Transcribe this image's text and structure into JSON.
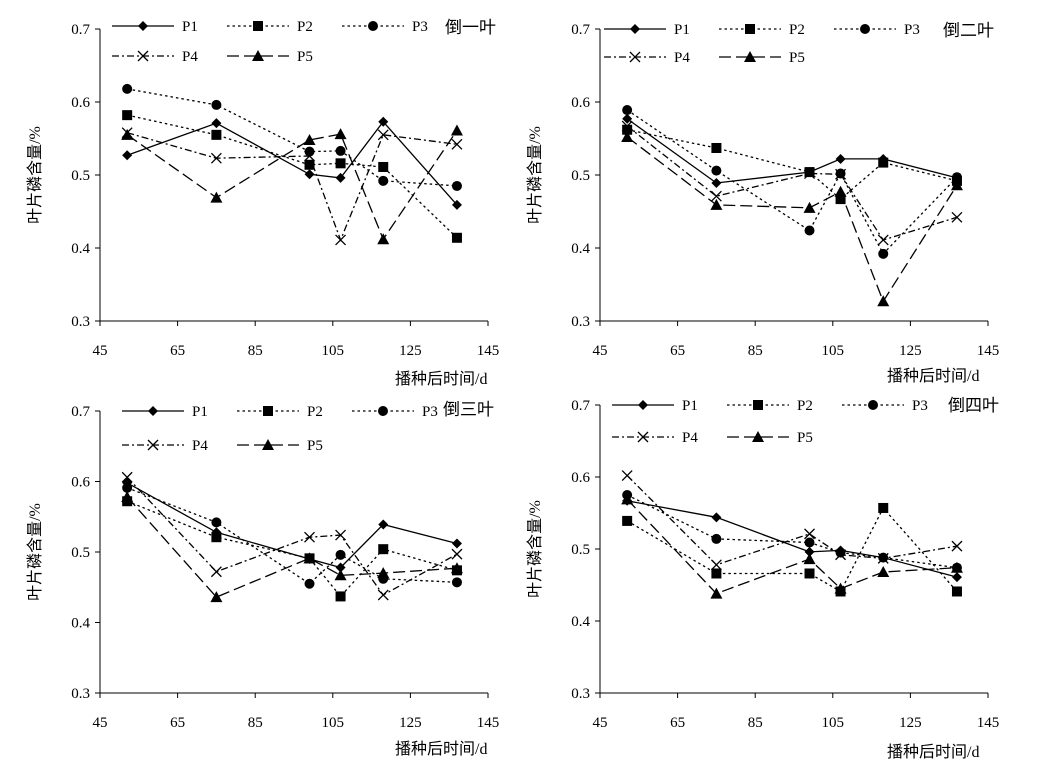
{
  "chart_data": [
    {
      "type": "line",
      "title": "倒一叶",
      "xlabel": "播种后时间/d",
      "ylabel": "叶片磷含量/%",
      "xlim": [
        45,
        145
      ],
      "ylim": [
        0.3,
        0.7
      ],
      "xticks": [
        "45",
        "65",
        "85",
        "105",
        "125",
        "145"
      ],
      "yticks": [
        "0.3",
        "0.4",
        "0.5",
        "0.6",
        "0.7"
      ],
      "legend_loc": "top",
      "grid": false,
      "series": [
        {
          "name": "P1",
          "x": [
            52,
            75,
            99,
            107,
            118,
            137
          ],
          "y": [
            0.527,
            0.571,
            0.501,
            0.496,
            0.573,
            0.459
          ]
        },
        {
          "name": "P2",
          "x": [
            52,
            75,
            99,
            107,
            118,
            137
          ],
          "y": [
            0.582,
            0.555,
            0.514,
            0.516,
            0.511,
            0.414
          ]
        },
        {
          "name": "P3",
          "x": [
            52,
            75,
            99,
            107,
            118,
            137
          ],
          "y": [
            0.618,
            0.596,
            0.532,
            0.533,
            0.492,
            0.485
          ]
        },
        {
          "name": "P4",
          "x": [
            52,
            75,
            99,
            107,
            118,
            137
          ],
          "y": [
            0.558,
            0.523,
            0.526,
            0.411,
            0.555,
            0.542
          ]
        },
        {
          "name": "P5",
          "x": [
            52,
            75,
            99,
            107,
            118,
            137
          ],
          "y": [
            0.555,
            0.469,
            0.548,
            0.556,
            0.412,
            0.561
          ]
        }
      ]
    },
    {
      "type": "line",
      "title": "倒二叶",
      "xlabel": "播种后时间/d",
      "ylabel": "叶片磷含量/%",
      "xlim": [
        45,
        145
      ],
      "ylim": [
        0.3,
        0.7
      ],
      "xticks": [
        "45",
        "65",
        "85",
        "105",
        "125",
        "145"
      ],
      "yticks": [
        "0.3",
        "0.4",
        "0.5",
        "0.6",
        "0.7"
      ],
      "legend_loc": "top",
      "grid": false,
      "series": [
        {
          "name": "P1",
          "x": [
            52,
            75,
            99,
            107,
            118,
            137
          ],
          "y": [
            0.577,
            0.489,
            0.504,
            0.522,
            0.522,
            0.496
          ]
        },
        {
          "name": "P2",
          "x": [
            52,
            75,
            99,
            107,
            118,
            137
          ],
          "y": [
            0.562,
            0.537,
            0.504,
            0.467,
            0.517,
            0.492
          ]
        },
        {
          "name": "P3",
          "x": [
            52,
            75,
            99,
            107,
            118,
            137
          ],
          "y": [
            0.589,
            0.506,
            0.424,
            0.502,
            0.392,
            0.497
          ]
        },
        {
          "name": "P4",
          "x": [
            52,
            75,
            99,
            107,
            118,
            137
          ],
          "y": [
            0.567,
            0.471,
            0.502,
            0.501,
            0.411,
            0.442
          ]
        },
        {
          "name": "P5",
          "x": [
            52,
            75,
            99,
            107,
            118,
            137
          ],
          "y": [
            0.552,
            0.459,
            0.455,
            0.477,
            0.327,
            0.486
          ]
        }
      ]
    },
    {
      "type": "line",
      "title": "倒三叶",
      "xlabel": "播种后时间/d",
      "ylabel": "叶片磷含量/%",
      "xlim": [
        45,
        145
      ],
      "ylim": [
        0.3,
        0.7
      ],
      "xticks": [
        "45",
        "65",
        "85",
        "105",
        "125",
        "145"
      ],
      "yticks": [
        "0.3",
        "0.4",
        "0.5",
        "0.6",
        "0.7"
      ],
      "legend_loc": "top",
      "grid": false,
      "series": [
        {
          "name": "P1",
          "x": [
            52,
            75,
            99,
            107,
            118,
            137
          ],
          "y": [
            0.598,
            0.528,
            0.49,
            0.478,
            0.539,
            0.512
          ]
        },
        {
          "name": "P2",
          "x": [
            52,
            75,
            99,
            107,
            118,
            137
          ],
          "y": [
            0.572,
            0.521,
            0.491,
            0.437,
            0.504,
            0.474
          ]
        },
        {
          "name": "P3",
          "x": [
            52,
            75,
            99,
            107,
            118,
            137
          ],
          "y": [
            0.591,
            0.542,
            0.455,
            0.496,
            0.462,
            0.457
          ]
        },
        {
          "name": "P4",
          "x": [
            52,
            75,
            99,
            107,
            118,
            137
          ],
          "y": [
            0.606,
            0.472,
            0.521,
            0.524,
            0.439,
            0.497
          ]
        },
        {
          "name": "P5",
          "x": [
            52,
            75,
            99,
            107,
            118,
            137
          ],
          "y": [
            0.578,
            0.436,
            0.491,
            0.467,
            0.47,
            0.477
          ]
        }
      ]
    },
    {
      "type": "line",
      "title": "倒四叶",
      "xlabel": "播种后时间/d",
      "ylabel": "叶片磷含量/%",
      "xlim": [
        45,
        145
      ],
      "ylim": [
        0.3,
        0.7
      ],
      "xticks": [
        "45",
        "65",
        "85",
        "105",
        "125",
        "145"
      ],
      "yticks": [
        "0.3",
        "0.4",
        "0.5",
        "0.6",
        "0.7"
      ],
      "legend_loc": "top",
      "grid": false,
      "series": [
        {
          "name": "P1",
          "x": [
            52,
            75,
            99,
            107,
            118,
            137
          ],
          "y": [
            0.567,
            0.544,
            0.496,
            0.498,
            0.488,
            0.461
          ]
        },
        {
          "name": "P2",
          "x": [
            52,
            75,
            99,
            107,
            118,
            137
          ],
          "y": [
            0.539,
            0.466,
            0.466,
            0.441,
            0.557,
            0.441
          ]
        },
        {
          "name": "P3",
          "x": [
            52,
            75,
            99,
            107,
            118,
            137
          ],
          "y": [
            0.575,
            0.514,
            0.509,
            0.495,
            0.488,
            0.474
          ]
        },
        {
          "name": "P4",
          "x": [
            52,
            75,
            99,
            107,
            118,
            137
          ],
          "y": [
            0.602,
            0.478,
            0.521,
            0.492,
            0.487,
            0.504
          ]
        },
        {
          "name": "P5",
          "x": [
            52,
            75,
            99,
            107,
            118,
            137
          ],
          "y": [
            0.569,
            0.438,
            0.486,
            0.445,
            0.468,
            0.474
          ]
        }
      ]
    }
  ],
  "styles": {
    "line_color": "#000000",
    "series_styles": [
      {
        "dash": "solid",
        "marker": "diamond"
      },
      {
        "dash": "dotted",
        "marker": "square"
      },
      {
        "dash": "dotted",
        "marker": "circle"
      },
      {
        "dash": "dash-dot",
        "marker": "x"
      },
      {
        "dash": "long-dash",
        "marker": "triangle"
      }
    ]
  }
}
